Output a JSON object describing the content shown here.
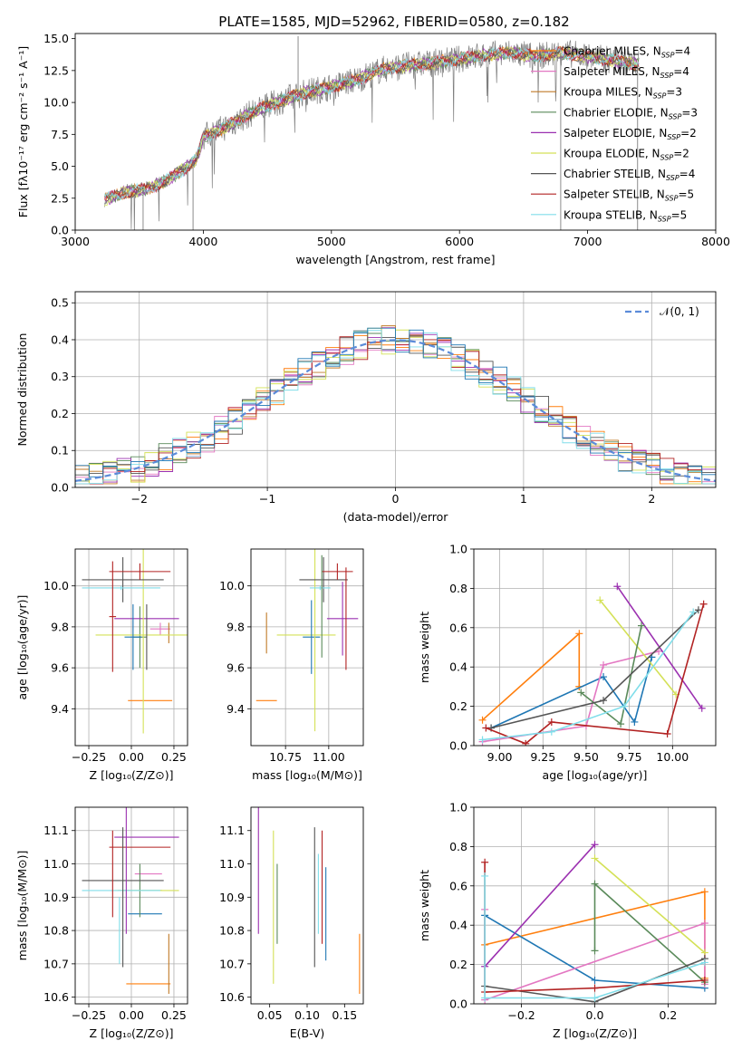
{
  "title": "PLATE=1585, MJD=52962, FIBERID=0580, z=0.182",
  "colors": [
    "#ff7f0e",
    "#e377c2",
    "#c07a28",
    "#5a8a5a",
    "#9b30b0",
    "#d4e157",
    "#555555",
    "#b22222",
    "#80deea"
  ],
  "colors_alt": [
    "#1f77b4"
  ],
  "chart_data": [
    {
      "id": "spectrum",
      "type": "line",
      "xlabel": "wavelength [Angstrom, rest frame]",
      "ylabel": "Flux [fλ10⁻¹⁷ erg cm⁻² s⁻¹ A⁻¹]",
      "xlim": [
        3000,
        8000
      ],
      "ylim": [
        0,
        15.4
      ],
      "xticks": [
        "3000",
        "4000",
        "5000",
        "6000",
        "7000",
        "8000"
      ],
      "yticks": [
        "0.0",
        "2.5",
        "5.0",
        "7.5",
        "10.0",
        "12.5",
        "15.0"
      ],
      "legend_position": "upper right",
      "series": [
        {
          "name": "Chabrier MILES, N_SSP=4",
          "color": "#ff7f0e"
        },
        {
          "name": "Salpeter MILES, N_SSP=4",
          "color": "#e377c2"
        },
        {
          "name": "Kroupa MILES, N_SSP=3",
          "color": "#c07a28"
        },
        {
          "name": "Chabrier ELODIE, N_SSP=3",
          "color": "#5a8a5a"
        },
        {
          "name": "Salpeter ELODIE, N_SSP=2",
          "color": "#9b30b0"
        },
        {
          "name": "Kroupa ELODIE, N_SSP=2",
          "color": "#d4e157"
        },
        {
          "name": "Chabrier STELIB, N_SSP=4",
          "color": "#555555"
        },
        {
          "name": "Salpeter STELIB, N_SSP=5",
          "color": "#b22222"
        },
        {
          "name": "Kroupa STELIB, N_SSP=5",
          "color": "#80deea"
        }
      ],
      "continuum": {
        "x": [
          3230,
          3400,
          3550,
          3700,
          3850,
          3950,
          4000,
          4200,
          4400,
          4600,
          4800,
          5000,
          5200,
          5400,
          5600,
          5800,
          6000,
          6200,
          6400,
          6600,
          6800,
          7000,
          7200,
          7400
        ],
        "y": [
          2.4,
          3.0,
          3.2,
          3.8,
          4.8,
          5.6,
          7.3,
          8.2,
          9.3,
          10.1,
          10.8,
          11.2,
          11.8,
          12.6,
          12.9,
          13.1,
          13.4,
          13.7,
          13.9,
          13.6,
          13.9,
          13.6,
          13.3,
          13.0
        ]
      }
    },
    {
      "id": "residuals",
      "type": "histogram",
      "xlabel": "(data-model)/error",
      "ylabel": "Normed distribution",
      "xlim": [
        -2.5,
        2.5
      ],
      "ylim": [
        0,
        0.53
      ],
      "xticks": [
        "−2",
        "−1",
        "0",
        "1",
        "2"
      ],
      "yticks": [
        "0.0",
        "0.1",
        "0.2",
        "0.3",
        "0.4",
        "0.5"
      ],
      "legend": {
        "label": "𝒩(0, 1)",
        "position": "upper right"
      },
      "gaussian": {
        "mean": 0,
        "sigma": 1,
        "color": "#5b8bd9"
      }
    },
    {
      "id": "age-vs-Z",
      "type": "errorbar",
      "xlabel": "Z [log₁₀(Z/Z⊙)]",
      "ylabel": "age  [log₁₀(age/yr)]",
      "xlim": [
        -0.33,
        0.33
      ],
      "ylim": [
        9.22,
        10.18
      ],
      "xticks": [
        "−0.25",
        "0.00",
        "0.25"
      ],
      "yticks": [
        "9.4",
        "9.6",
        "9.8",
        "10.0"
      ],
      "points": [
        {
          "x": 0.11,
          "y": 9.44,
          "xerr": 0.13,
          "yerr": 0.0,
          "color": "#ff7f0e"
        },
        {
          "x": 0.17,
          "y": 9.79,
          "xerr": 0.06,
          "yerr": 0.03,
          "color": "#e377c2"
        },
        {
          "x": 0.22,
          "y": 9.77,
          "xerr": 0.0,
          "yerr": 0.05,
          "color": "#c07a28"
        },
        {
          "x": 0.05,
          "y": 9.75,
          "xerr": 0.04,
          "yerr": 0.15,
          "color": "#5a8a5a"
        },
        {
          "x": 0.09,
          "y": 9.84,
          "xerr": 0.19,
          "yerr": 0.0,
          "color": "#9b30b0"
        },
        {
          "x": 0.07,
          "y": 9.76,
          "xerr": 0.28,
          "yerr": 0.48,
          "color": "#d4e157"
        },
        {
          "x": -0.05,
          "y": 10.03,
          "xerr": 0.24,
          "yerr": 0.11,
          "color": "#555555"
        },
        {
          "x": 0.05,
          "y": 10.07,
          "xerr": 0.18,
          "yerr": 0.04,
          "color": "#b22222"
        },
        {
          "x": -0.06,
          "y": 9.99,
          "xerr": 0.23,
          "yerr": 0.01,
          "color": "#80deea"
        },
        {
          "x": 0.01,
          "y": 9.75,
          "xerr": 0.05,
          "yerr": 0.16,
          "color": "#1f77b4"
        },
        {
          "x": -0.11,
          "y": 9.85,
          "xerr": 0.02,
          "yerr": 0.27,
          "color": "#b22222"
        },
        {
          "x": 0.09,
          "y": 9.75,
          "xerr": 0.0,
          "yerr": 0.16,
          "color": "#555555"
        }
      ]
    },
    {
      "id": "age-vs-mass",
      "type": "errorbar",
      "xlabel": "mass [log₁₀(M/M⊙)]",
      "ylabel": "",
      "xlim": [
        10.55,
        11.2
      ],
      "ylim": [
        9.22,
        10.18
      ],
      "xticks": [
        "10.75",
        "11.00"
      ],
      "yticks": [
        "9.4",
        "9.6",
        "9.8",
        "10.0"
      ],
      "points": [
        {
          "x": 10.64,
          "y": 9.44,
          "xerr": 0.06,
          "yerr": 0.0,
          "color": "#ff7f0e"
        },
        {
          "x": 10.64,
          "y": 9.77,
          "xerr": 0.0,
          "yerr": 0.1,
          "color": "#c07a28"
        },
        {
          "x": 10.87,
          "y": 9.76,
          "xerr": 0.17,
          "yerr": 0.0,
          "color": "#d4e157"
        },
        {
          "x": 10.9,
          "y": 9.75,
          "xerr": 0.05,
          "yerr": 0.18,
          "color": "#1f77b4"
        },
        {
          "x": 10.92,
          "y": 9.76,
          "xerr": 0.0,
          "yerr": 0.47,
          "color": "#d4e157"
        },
        {
          "x": 10.97,
          "y": 10.03,
          "xerr": 0.14,
          "yerr": 0.11,
          "color": "#555555"
        },
        {
          "x": 10.95,
          "y": 9.99,
          "xerr": 0.06,
          "yerr": 0.01,
          "color": "#80deea"
        },
        {
          "x": 11.05,
          "y": 10.07,
          "xerr": 0.09,
          "yerr": 0.04,
          "color": "#b22222"
        },
        {
          "x": 11.08,
          "y": 9.84,
          "xerr": 0.09,
          "yerr": 0.18,
          "color": "#9b30b0"
        },
        {
          "x": 11.1,
          "y": 9.84,
          "xerr": 0.0,
          "yerr": 0.25,
          "color": "#b22222"
        },
        {
          "x": 10.96,
          "y": 9.9,
          "xerr": 0.0,
          "yerr": 0.25,
          "color": "#5a8a5a"
        }
      ]
    },
    {
      "id": "massweight-vs-age",
      "type": "line",
      "xlabel": "age  [log₁₀(age/yr)]",
      "ylabel": "mass weight",
      "xlim": [
        8.85,
        10.25
      ],
      "ylim": [
        0,
        1
      ],
      "xticks": [
        "9.00",
        "9.25",
        "9.50",
        "9.75",
        "10.00"
      ],
      "yticks": [
        "0.0",
        "0.2",
        "0.4",
        "0.6",
        "0.8",
        "1.0"
      ],
      "series": [
        {
          "color": "#ff7f0e",
          "x": [
            8.9,
            9.46,
            9.46,
            9.46
          ],
          "y": [
            0.13,
            0.57,
            0.3,
            0.3
          ]
        },
        {
          "color": "#1f77b4",
          "x": [
            8.95,
            9.6,
            9.78,
            9.88
          ],
          "y": [
            0.09,
            0.35,
            0.12,
            0.45
          ]
        },
        {
          "color": "#e377c2",
          "x": [
            8.9,
            9.5,
            9.6,
            9.92
          ],
          "y": [
            0.02,
            0.1,
            0.41,
            0.48
          ]
        },
        {
          "color": "#9b30b0",
          "x": [
            9.68,
            10.17
          ],
          "y": [
            0.81,
            0.19
          ]
        },
        {
          "color": "#d4e157",
          "x": [
            9.58,
            10.02
          ],
          "y": [
            0.74,
            0.26
          ]
        },
        {
          "color": "#5a8a5a",
          "x": [
            9.47,
            9.7,
            9.82
          ],
          "y": [
            0.27,
            0.11,
            0.61
          ]
        },
        {
          "color": "#555555",
          "x": [
            8.95,
            9.6,
            10.15
          ],
          "y": [
            0.09,
            0.23,
            0.69
          ]
        },
        {
          "color": "#b22222",
          "x": [
            8.92,
            9.15,
            9.3,
            9.97,
            10.18
          ],
          "y": [
            0.09,
            0.01,
            0.12,
            0.06,
            0.72
          ]
        },
        {
          "color": "#80deea",
          "x": [
            8.9,
            9.3,
            9.72,
            10.12
          ],
          "y": [
            0.03,
            0.07,
            0.2,
            0.68
          ]
        }
      ]
    },
    {
      "id": "mass-vs-Z",
      "type": "errorbar",
      "xlabel": "Z [log₁₀(Z/Z⊙)]",
      "ylabel": "mass [log₁₀(M/M⊙)]",
      "xlim": [
        -0.33,
        0.33
      ],
      "ylim": [
        10.58,
        11.17
      ],
      "xticks": [
        "−0.25",
        "0.00",
        "0.25"
      ],
      "yticks": [
        "10.6",
        "10.7",
        "10.8",
        "10.9",
        "11.0",
        "11.1"
      ],
      "points": [
        {
          "x": 0.1,
          "y": 10.64,
          "xerr": 0.13,
          "yerr": 0.0,
          "color": "#ff7f0e"
        },
        {
          "x": 0.22,
          "y": 10.7,
          "xerr": 0.0,
          "yerr": 0.09,
          "color": "#c07a28"
        },
        {
          "x": 0.1,
          "y": 10.97,
          "xerr": 0.08,
          "yerr": 0.0,
          "color": "#e377c2"
        },
        {
          "x": 0.08,
          "y": 10.85,
          "xerr": 0.1,
          "yerr": 0.0,
          "color": "#1f77b4"
        },
        {
          "x": 0.05,
          "y": 10.92,
          "xerr": 0.13,
          "yerr": 0.08,
          "color": "#5a8a5a"
        },
        {
          "x": 0.09,
          "y": 11.08,
          "xerr": 0.19,
          "yerr": 0.0,
          "color": "#9b30b0"
        },
        {
          "x": 0.09,
          "y": 10.92,
          "xerr": 0.19,
          "yerr": 0.0,
          "color": "#d4e157"
        },
        {
          "x": -0.05,
          "y": 10.95,
          "xerr": 0.24,
          "yerr": 0.0,
          "color": "#555555"
        },
        {
          "x": 0.05,
          "y": 11.05,
          "xerr": 0.18,
          "yerr": 0.0,
          "color": "#b22222"
        },
        {
          "x": -0.06,
          "y": 10.92,
          "xerr": 0.23,
          "yerr": 0.0,
          "color": "#80deea"
        },
        {
          "x": -0.05,
          "y": 10.9,
          "xerr": 0.0,
          "yerr": 0.21,
          "color": "#555555"
        },
        {
          "x": -0.11,
          "y": 10.97,
          "xerr": 0.0,
          "yerr": 0.13,
          "color": "#b22222"
        },
        {
          "x": -0.03,
          "y": 10.98,
          "xerr": 0.0,
          "yerr": 0.19,
          "color": "#9b30b0"
        },
        {
          "x": -0.07,
          "y": 10.8,
          "xerr": 0.0,
          "yerr": 0.1,
          "color": "#80deea"
        }
      ]
    },
    {
      "id": "mass-vs-ebv",
      "type": "errorbar",
      "xlabel": "E(B-V)",
      "ylabel": "",
      "xlim": [
        0.025,
        0.175
      ],
      "ylim": [
        10.58,
        11.17
      ],
      "xticks": [
        "0.05",
        "0.10",
        "0.15"
      ],
      "yticks": [
        "10.6",
        "10.7",
        "10.8",
        "10.9",
        "11.0",
        "11.1"
      ],
      "points": [
        {
          "x": 0.035,
          "y": 10.98,
          "xerr": 0.0,
          "yerr": 0.19,
          "color": "#9b30b0"
        },
        {
          "x": 0.055,
          "y": 10.87,
          "xerr": 0.0,
          "yerr": 0.23,
          "color": "#d4e157"
        },
        {
          "x": 0.06,
          "y": 10.88,
          "xerr": 0.0,
          "yerr": 0.12,
          "color": "#5a8a5a"
        },
        {
          "x": 0.11,
          "y": 10.9,
          "xerr": 0.0,
          "yerr": 0.21,
          "color": "#555555"
        },
        {
          "x": 0.115,
          "y": 10.91,
          "xerr": 0.0,
          "yerr": 0.12,
          "color": "#80deea"
        },
        {
          "x": 0.12,
          "y": 10.93,
          "xerr": 0.0,
          "yerr": 0.17,
          "color": "#b22222"
        },
        {
          "x": 0.125,
          "y": 10.85,
          "xerr": 0.0,
          "yerr": 0.14,
          "color": "#1f77b4"
        },
        {
          "x": 0.17,
          "y": 10.7,
          "xerr": 0.0,
          "yerr": 0.09,
          "color": "#ff7f0e"
        }
      ]
    },
    {
      "id": "massweight-vs-Z",
      "type": "line",
      "xlabel": "Z [log₁₀(Z/Z⊙)]",
      "ylabel": "mass weight",
      "xlim": [
        -0.33,
        0.33
      ],
      "ylim": [
        0,
        1
      ],
      "xticks": [
        "−0.2",
        "0.0",
        "0.2"
      ],
      "yticks": [
        "0.0",
        "0.2",
        "0.4",
        "0.6",
        "0.8",
        "1.0"
      ],
      "series": [
        {
          "color": "#ff7f0e",
          "x": [
            -0.3,
            0.3,
            0.3
          ],
          "y": [
            0.3,
            0.57,
            0.13
          ]
        },
        {
          "color": "#1f77b4",
          "x": [
            -0.3,
            0.0,
            0.3
          ],
          "y": [
            0.45,
            0.12,
            0.08
          ]
        },
        {
          "color": "#e377c2",
          "x": [
            -0.3,
            -0.3,
            0.3,
            0.3
          ],
          "y": [
            0.48,
            0.02,
            0.41,
            0.1
          ]
        },
        {
          "color": "#9b30b0",
          "x": [
            -0.3,
            0.0
          ],
          "y": [
            0.19,
            0.81
          ]
        },
        {
          "color": "#d4e157",
          "x": [
            0.0,
            0.3
          ],
          "y": [
            0.74,
            0.26
          ]
        },
        {
          "color": "#5a8a5a",
          "x": [
            0.0,
            0.0,
            0.3
          ],
          "y": [
            0.27,
            0.61,
            0.11
          ]
        },
        {
          "color": "#555555",
          "x": [
            -0.3,
            0.0,
            0.3
          ],
          "y": [
            0.09,
            0.01,
            0.23
          ]
        },
        {
          "color": "#b22222",
          "x": [
            -0.3,
            -0.3,
            0.0,
            0.3
          ],
          "y": [
            0.72,
            0.06,
            0.08,
            0.12
          ]
        },
        {
          "color": "#80deea",
          "x": [
            -0.3,
            -0.3,
            0.0,
            0.3
          ],
          "y": [
            0.65,
            0.03,
            0.03,
            0.21
          ]
        }
      ]
    }
  ]
}
